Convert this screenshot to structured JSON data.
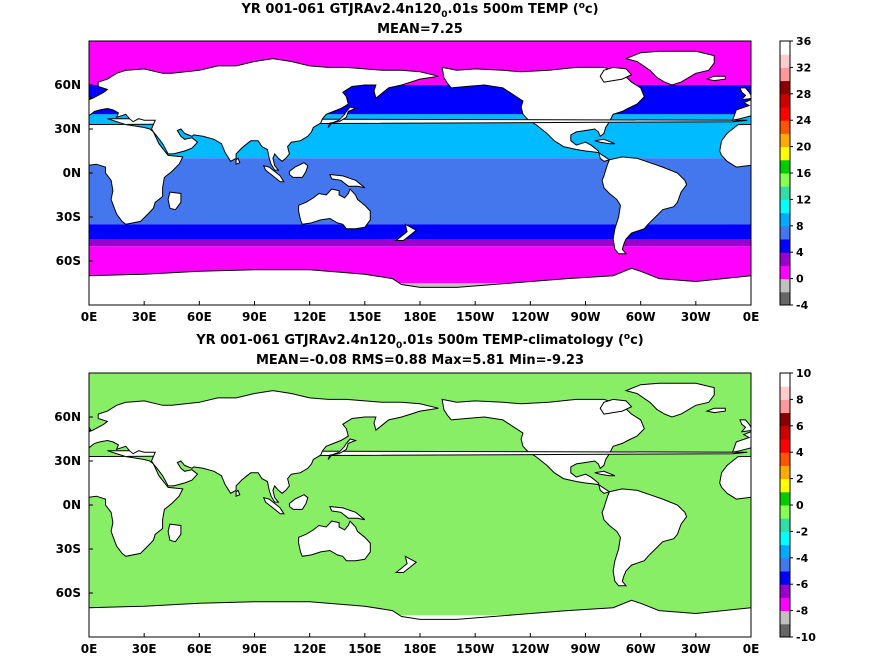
{
  "chart_data": [
    {
      "type": "heatmap",
      "title_main": "YR 001-061 GTJRAv2.4n120",
      "title_sub": "0",
      "title_rest": ".01s 500m TEMP (",
      "title_sup": "o",
      "title_end": "c)",
      "subtitle": "MEAN=7.25",
      "x_ticks": [
        "0E",
        "30E",
        "60E",
        "90E",
        "120E",
        "150E",
        "180E",
        "150W",
        "120W",
        "90W",
        "60W",
        "30W",
        "0E"
      ],
      "y_ticks": [
        "60N",
        "30N",
        "0N",
        "30S",
        "60S"
      ],
      "colorbar": {
        "labels": [
          "36",
          "32",
          "28",
          "24",
          "20",
          "16",
          "12",
          "8",
          "4",
          "0",
          "-4"
        ],
        "colors": [
          "#666666",
          "#c0c0c0",
          "#ff00ff",
          "#9900cc",
          "#0000ff",
          "#4477ee",
          "#00aaff",
          "#00ffff",
          "#33ddaa",
          "#88ff55",
          "#00cc00",
          "#ffff00",
          "#ffaa00",
          "#ff5500",
          "#ff0000",
          "#cc0000",
          "#880000",
          "#ff9999",
          "#ffcccc",
          "#ffffff"
        ]
      },
      "bands": [
        {
          "lat_from": 90,
          "lat_to": 60,
          "color": "#ff00ff"
        },
        {
          "lat_from": 60,
          "lat_to": 40,
          "color": "#0000ff"
        },
        {
          "lat_from": 40,
          "lat_to": 10,
          "color": "#00bbff"
        },
        {
          "lat_from": 10,
          "lat_to": -35,
          "color": "#4477ee"
        },
        {
          "lat_from": -35,
          "lat_to": -45,
          "color": "#0000ff"
        },
        {
          "lat_from": -45,
          "lat_to": -50,
          "color": "#9900cc"
        },
        {
          "lat_from": -50,
          "lat_to": -75,
          "color": "#ff00ff"
        },
        {
          "lat_from": -75,
          "lat_to": -90,
          "color": "#c0c0c0"
        }
      ]
    },
    {
      "type": "heatmap",
      "title_main": "YR 001-061 GTJRAv2.4n120",
      "title_sub": "0",
      "title_rest": ".01s 500m TEMP-climatology (",
      "title_sup": "o",
      "title_end": "c)",
      "subtitle": "MEAN=-0.08   RMS=0.88   Max=5.81   Min=-9.23",
      "x_ticks": [
        "0E",
        "30E",
        "60E",
        "90E",
        "120E",
        "150E",
        "180E",
        "150W",
        "120W",
        "90W",
        "60W",
        "30W",
        "0E"
      ],
      "y_ticks": [
        "60N",
        "30N",
        "0N",
        "30S",
        "60S"
      ],
      "colorbar": {
        "labels": [
          "10",
          "8",
          "6",
          "4",
          "2",
          "0",
          "-2",
          "-4",
          "-6",
          "-8",
          "-10"
        ],
        "colors": [
          "#666666",
          "#c0c0c0",
          "#ff00ff",
          "#9900cc",
          "#0000ff",
          "#4477ee",
          "#00aaff",
          "#00ffff",
          "#33ddaa",
          "#88ff55",
          "#00cc00",
          "#ffff00",
          "#ffaa00",
          "#ff5500",
          "#ff0000",
          "#cc0000",
          "#880000",
          "#ff9999",
          "#ffcccc",
          "#ffffff"
        ]
      },
      "bands": [
        {
          "lat_from": 90,
          "lat_to": -75,
          "color": "#88ee66"
        },
        {
          "lat_from": -75,
          "lat_to": -90,
          "color": "#ffffff"
        }
      ]
    }
  ]
}
